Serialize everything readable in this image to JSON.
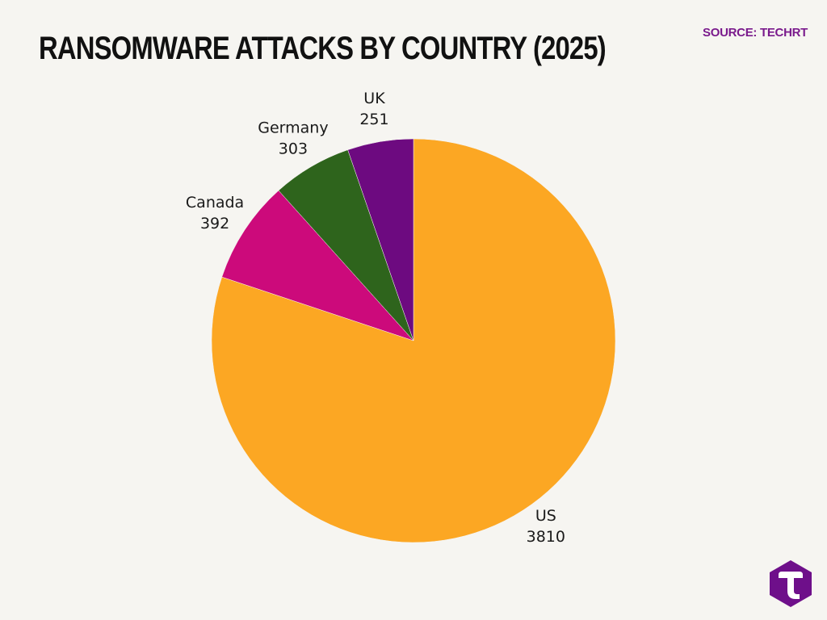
{
  "title": "RANSOMWARE ATTACKS BY COUNTRY (2025)",
  "source": "SOURCE: TECHRT",
  "colors": {
    "background": "#f6f5f1",
    "source_text": "#7a1a8c",
    "logo": "#6e0f8a"
  },
  "logo": {
    "icon": "techrt-t-hexagon-icon"
  },
  "chart_data": {
    "type": "pie",
    "title": "RANSOMWARE ATTACKS BY COUNTRY (2025)",
    "labels": [
      "US",
      "Canada",
      "Germany",
      "UK"
    ],
    "values": [
      3810,
      392,
      303,
      251
    ],
    "colors": [
      "#fca723",
      "#cc0a7b",
      "#2e641c",
      "#6d0a80"
    ],
    "start_angle_deg": 0,
    "direction": "clockwise"
  }
}
